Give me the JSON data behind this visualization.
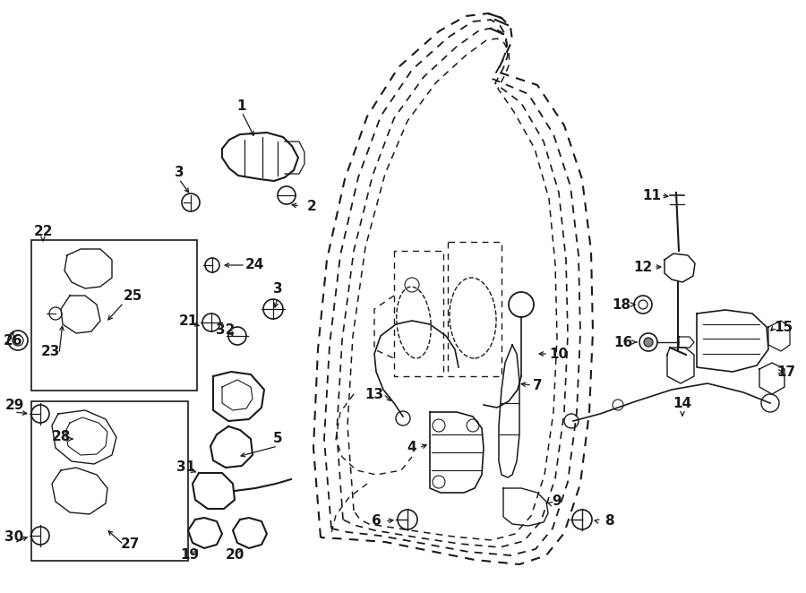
{
  "bg_color": "#ffffff",
  "line_color": "#1a1a1a",
  "fig_width": 9.0,
  "fig_height": 6.62,
  "dpi": 100,
  "xlim": [
    0,
    900
  ],
  "ylim": [
    0,
    662
  ]
}
